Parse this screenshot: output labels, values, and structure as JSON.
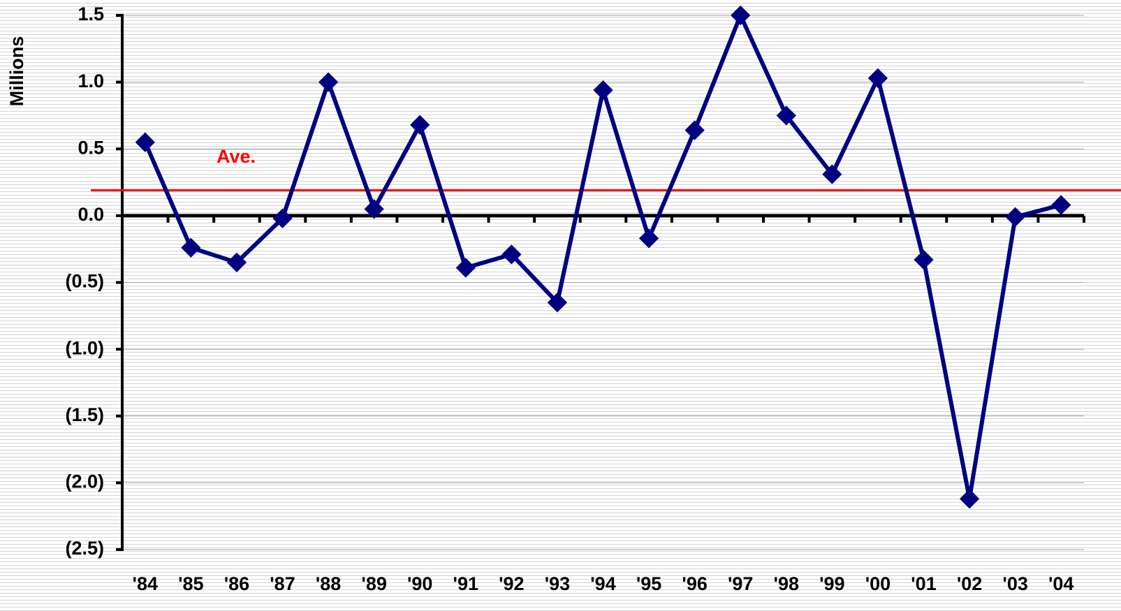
{
  "chart_data": {
    "type": "line",
    "y_label": "Millions",
    "categories": [
      "'84",
      "'85",
      "'86",
      "'87",
      "'88",
      "'89",
      "'90",
      "'91",
      "'92",
      "'93",
      "'94",
      "'95",
      "'96",
      "'97",
      "'98",
      "'99",
      "'00",
      "'01",
      "'02",
      "'03",
      "'04"
    ],
    "series": [
      {
        "color": "#000080",
        "values": [
          0.55,
          -0.24,
          -0.35,
          -0.02,
          1.0,
          0.05,
          0.68,
          -0.39,
          -0.29,
          -0.65,
          0.94,
          -0.17,
          0.64,
          1.5,
          0.75,
          0.31,
          1.03,
          -0.33,
          -2.12,
          -0.01,
          0.08
        ]
      }
    ],
    "average": {
      "label": "Ave.",
      "value": 0.19,
      "color": "#ff0000"
    },
    "ylim": [
      -2.5,
      1.5
    ],
    "yticks": [
      {
        "value": -2.5,
        "label": "(2.5)"
      },
      {
        "value": -2.0,
        "label": "(2.0)"
      },
      {
        "value": -1.5,
        "label": "(1.5)"
      },
      {
        "value": -1.0,
        "label": "(1.0)"
      },
      {
        "value": -0.5,
        "label": "(0.5)"
      },
      {
        "value": 0,
        "label": "0.0"
      },
      0.5,
      {
        "value": 1.0,
        "label": "1.0"
      },
      1.5
    ],
    "grid": true
  }
}
